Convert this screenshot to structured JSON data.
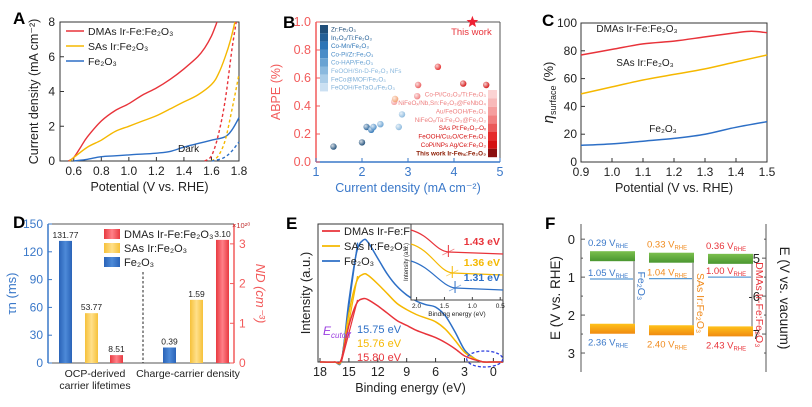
{
  "colors": {
    "red": "#e8333a",
    "yellow": "#f5b800",
    "blue": "#2d6fc6",
    "orange": "#f08a1c",
    "green": "#5aa83a",
    "violet": "#9b3fe0",
    "axis_red": "#f25b5b",
    "axis_blue": "#3a78c9"
  },
  "chart_data": [
    {
      "panel": "A",
      "type": "line",
      "xlabel": "Potential (V vs. RHE)",
      "ylabel": "Current density (mA cm⁻²)",
      "xlim": [
        0.5,
        1.8
      ],
      "ylim": [
        0,
        8
      ],
      "xticks": [
        "0.6",
        "0.8",
        "1.0",
        "1.2",
        "1.4",
        "1.6",
        "1.8"
      ],
      "yticks": [
        "0",
        "2",
        "4",
        "6",
        "8"
      ],
      "annotation": "Dark",
      "legend": [
        "DMAs Ir-Fe:Fe₂O₃",
        "SAs Ir:Fe₂O₃",
        "Fe₂O₃"
      ],
      "series": [
        {
          "name": "DMAs Ir-Fe:Fe2O3",
          "color": "red",
          "style": "solid",
          "x": [
            0.56,
            0.6,
            0.65,
            0.7,
            0.8,
            0.9,
            1.0,
            1.1,
            1.2,
            1.3,
            1.4,
            1.5,
            1.55,
            1.6,
            1.64
          ],
          "y": [
            0,
            0.2,
            0.8,
            1.4,
            2.3,
            2.9,
            3.3,
            3.8,
            4.2,
            4.7,
            5.3,
            6.0,
            6.5,
            7.2,
            8.0
          ]
        },
        {
          "name": "SAs Ir:Fe2O3",
          "color": "yellow",
          "style": "solid",
          "x": [
            0.57,
            0.6,
            0.7,
            0.8,
            0.9,
            1.0,
            1.1,
            1.2,
            1.3,
            1.4,
            1.5,
            1.6,
            1.65,
            1.7,
            1.74,
            1.77
          ],
          "y": [
            0,
            0.2,
            0.8,
            1.2,
            1.7,
            2.0,
            2.3,
            2.6,
            3.0,
            3.4,
            3.8,
            4.4,
            5.0,
            6.0,
            7.0,
            8.0
          ]
        },
        {
          "name": "Fe2O3",
          "color": "blue",
          "style": "solid",
          "x": [
            0.6,
            0.7,
            0.8,
            0.9,
            1.0,
            1.1,
            1.2,
            1.3,
            1.4,
            1.5,
            1.6,
            1.7,
            1.75,
            1.8
          ],
          "y": [
            0,
            0.1,
            0.25,
            0.3,
            0.35,
            0.4,
            0.45,
            0.55,
            0.8,
            1.0,
            1.2,
            1.4,
            1.8,
            2.5
          ]
        },
        {
          "name": "DMAs dark",
          "color": "red",
          "style": "dashed",
          "x": [
            1.55,
            1.6,
            1.65,
            1.7,
            1.75,
            1.78
          ],
          "y": [
            0,
            0.3,
            1.5,
            3.5,
            6.5,
            8.0
          ]
        },
        {
          "name": "SAs dark",
          "color": "yellow",
          "style": "dashed",
          "x": [
            1.6,
            1.65,
            1.7,
            1.75,
            1.8
          ],
          "y": [
            0,
            0.3,
            1.2,
            3.0,
            5.0
          ]
        },
        {
          "name": "Fe2O3 dark",
          "color": "blue",
          "style": "dashed",
          "x": [
            1.6,
            1.68,
            1.74,
            1.8
          ],
          "y": [
            0,
            0.15,
            0.5,
            1.1
          ]
        }
      ]
    },
    {
      "panel": "B",
      "type": "scatter",
      "xlabel": "Current density (mA cm⁻²)",
      "ylabel": "ABPE (%)",
      "xlim": [
        1,
        5
      ],
      "ylim": [
        0,
        1.0
      ],
      "xticks": [
        "1",
        "2",
        "3",
        "4",
        "5"
      ],
      "yticks": [
        "0.0",
        "0.2",
        "0.4",
        "0.6",
        "0.8",
        "1.0"
      ],
      "this_work": {
        "label": "This work",
        "x": 4.4,
        "y": 1.0
      },
      "legend_left": [
        {
          "label": "Zr:Fe₂O₃",
          "color": "#1f4e79"
        },
        {
          "label": "In₂O₃/Ti:Fe₂O₃",
          "color": "#245f96"
        },
        {
          "label": "Co-Mn/Fe₂O₃",
          "color": "#2e75b6"
        },
        {
          "label": "Co-Pi/Zr:Fe₂O₃",
          "color": "#4a8cc7"
        },
        {
          "label": "Co-HAP/Fe₂O₃",
          "color": "#6aa3d3"
        },
        {
          "label": "FeOOH/Sn-D-Fe₂O₃ NFs",
          "color": "#8bb9de"
        },
        {
          "label": "FeCo@MOF/Fe₂O₃",
          "color": "#abcde8"
        },
        {
          "label": "FeOOH/FeTaO₄/Fe₂O₃",
          "color": "#cbe0f2"
        }
      ],
      "legend_right": [
        {
          "label": "Co-Pi/Co₂O₃/Ti:Fe₂O₃",
          "color": "#fbd3d3"
        },
        {
          "label": "NiFeOₓ/Nb,Sn:Fe₂O₃@FeNbO₄",
          "color": "#f8b9b9"
        },
        {
          "label": "Au/FeOOH/Fe₂O₃",
          "color": "#f59e9e"
        },
        {
          "label": "NiFeOₓ/Ta:Fe₂O₃@Fe₂O₃",
          "color": "#f18080"
        },
        {
          "label": "SAs Pt:Fe₂O₃-Oᵥ",
          "color": "#ea5a5a"
        },
        {
          "label": "FeOOH/Cu₂O/Ce:Fe₂O₃",
          "color": "#e52a2a"
        },
        {
          "label": "CoPi/NPs Ag/Ce:Fe₂O₃",
          "color": "#d41212"
        },
        {
          "label": "This work Ir-Feₕₓ:Fe₂O₃",
          "color": "#8b0f0f"
        }
      ],
      "points_blue": [
        [
          1.38,
          0.11
        ],
        [
          2.0,
          0.14
        ],
        [
          2.1,
          0.25
        ],
        [
          2.2,
          0.23
        ],
        [
          2.25,
          0.25
        ],
        [
          2.4,
          0.27
        ],
        [
          2.8,
          0.25
        ],
        [
          2.87,
          0.34
        ]
      ],
      "points_red": [
        [
          2.7,
          0.43
        ],
        [
          2.72,
          0.45
        ],
        [
          3.2,
          0.47
        ],
        [
          3.22,
          0.55
        ],
        [
          3.65,
          0.68
        ],
        [
          4.2,
          0.56
        ],
        [
          4.7,
          0.55
        ]
      ]
    },
    {
      "panel": "C",
      "type": "line",
      "xlabel": "Potential (V vs. RHE)",
      "ylabel": "ηsurface (%)",
      "xlim": [
        0.9,
        1.5
      ],
      "ylim": [
        0,
        100
      ],
      "xticks": [
        "0.9",
        "1.0",
        "1.1",
        "1.2",
        "1.3",
        "1.4",
        "1.5"
      ],
      "yticks": [
        "0",
        "20",
        "40",
        "60",
        "80",
        "100"
      ],
      "series": [
        {
          "name": "DMAs Ir-Fe:Fe₂O₃",
          "color": "red",
          "x": [
            0.9,
            1.0,
            1.1,
            1.2,
            1.3,
            1.4,
            1.45,
            1.5
          ],
          "y": [
            77,
            81,
            85,
            87,
            90,
            93,
            94,
            93
          ]
        },
        {
          "name": "SAs Ir:Fe₂O₃",
          "color": "yellow",
          "x": [
            0.9,
            1.0,
            1.1,
            1.2,
            1.3,
            1.4,
            1.5
          ],
          "y": [
            49,
            54,
            59,
            63,
            67,
            72,
            77
          ]
        },
        {
          "name": "Fe₂O₃",
          "color": "blue",
          "x": [
            0.9,
            1.0,
            1.1,
            1.2,
            1.3,
            1.4,
            1.5
          ],
          "y": [
            12,
            13,
            15,
            17,
            20,
            25,
            29
          ]
        }
      ]
    },
    {
      "panel": "D",
      "type": "bar",
      "ylabel_left": "τn (ms)",
      "ylabel_right": "ND (cm⁻³)",
      "right_multiplier": "×10²⁰",
      "ylim_left": [
        0,
        150
      ],
      "ylim_right": [
        0,
        3.5
      ],
      "yticks_left": [
        "0",
        "30",
        "60",
        "90",
        "120",
        "150"
      ],
      "yticks_right": [
        "0",
        "1",
        "2",
        "3"
      ],
      "categories": [
        "OCP-derived\ncarrier lifetimes",
        "Charge-carrier density"
      ],
      "category_lines": [
        [
          "OCP-derived",
          "carrier lifetimes"
        ],
        [
          "Charge-carrier density"
        ]
      ],
      "legend": [
        "DMAs Ir-Fe:Fe₂O₃",
        "SAs Ir:Fe₂O₃",
        "Fe₂O₃"
      ],
      "series": [
        {
          "name": "Fe2O3",
          "color": "blue",
          "values": [
            131.77,
            0.39
          ],
          "labels": [
            "131.77",
            "0.39"
          ]
        },
        {
          "name": "SAs Ir:Fe2O3",
          "color": "yellow",
          "values": [
            53.77,
            1.59
          ],
          "labels": [
            "53.77",
            "1.59"
          ]
        },
        {
          "name": "DMAs Ir-Fe:Fe2O3",
          "color": "red",
          "values": [
            8.51,
            3.1
          ],
          "labels": [
            "8.51",
            "3.10"
          ]
        }
      ]
    },
    {
      "panel": "E",
      "type": "line",
      "xlabel": "Binding energy (eV)",
      "ylabel": "Intensity (a.u.)",
      "xlim": [
        18,
        -1
      ],
      "xticks": [
        "18",
        "15",
        "12",
        "9",
        "6",
        "3",
        "0"
      ],
      "cutoff_label": "E",
      "cutoff_sub": "cutoff",
      "cutoffs": [
        {
          "label": "15.75 eV",
          "color": "blue"
        },
        {
          "label": "15.76 eV",
          "color": "yellow"
        },
        {
          "label": "15.80 eV",
          "color": "red"
        }
      ],
      "legend": [
        "DMAs Ir-Fe:Fe₂O₃",
        "SAs Ir:Fe₂O₃",
        "Fe₂O₃"
      ],
      "inset": {
        "xlabel": "Binding energy (eV)",
        "ylabel": "Intensity (a.u.)",
        "xticks": [
          "2.0",
          "1.5",
          "1.0",
          "0.5"
        ],
        "values": [
          {
            "label": "1.43 eV",
            "color": "red"
          },
          {
            "label": "1.36 eV",
            "color": "yellow"
          },
          {
            "label": "1.31 eV",
            "color": "blue"
          }
        ]
      },
      "series": [
        {
          "name": "Fe2O3",
          "color": "blue",
          "x": [
            18,
            16.5,
            15.75,
            15,
            14.2,
            13.5,
            13,
            12,
            11,
            10,
            9,
            8,
            7,
            6,
            5,
            4,
            3,
            2,
            1.5,
            1,
            0,
            -1
          ],
          "y": [
            0,
            0,
            0.02,
            0.5,
            0.9,
            1.0,
            0.98,
            0.85,
            0.72,
            0.62,
            0.55,
            0.5,
            0.47,
            0.45,
            0.38,
            0.25,
            0.1,
            0.03,
            0.01,
            0,
            0,
            0
          ]
        },
        {
          "name": "SAs",
          "color": "yellow",
          "x": [
            18,
            16.5,
            15.76,
            15,
            14.2,
            13.5,
            13,
            12,
            11,
            10,
            9,
            8,
            7,
            6,
            5,
            4,
            3,
            2,
            1.5,
            1,
            0,
            -1
          ],
          "y": [
            0,
            0,
            0.02,
            0.4,
            0.66,
            0.72,
            0.71,
            0.64,
            0.56,
            0.48,
            0.43,
            0.39,
            0.36,
            0.33,
            0.27,
            0.18,
            0.08,
            0.03,
            0.01,
            0,
            0,
            0
          ]
        },
        {
          "name": "DMAs",
          "color": "red",
          "x": [
            18,
            16.5,
            15.8,
            15,
            14.2,
            13.5,
            13,
            12,
            11,
            10,
            9,
            8,
            7,
            6,
            5,
            4,
            3,
            2,
            1.5,
            1,
            0,
            -1
          ],
          "y": [
            0,
            0,
            0.02,
            0.3,
            0.48,
            0.52,
            0.51,
            0.46,
            0.4,
            0.34,
            0.3,
            0.26,
            0.23,
            0.2,
            0.16,
            0.11,
            0.05,
            0.02,
            0.01,
            0,
            0,
            0
          ]
        }
      ]
    },
    {
      "panel": "F",
      "type": "diagram",
      "ylabel_left": "E (V vs. RHE)",
      "ylabel_right": "E (V vs. vacuum)",
      "ylim_left": [
        -0.4,
        3.5
      ],
      "yticks_left": [
        "0",
        "1",
        "2",
        "3"
      ],
      "yticks_right": [
        "-5",
        "-6",
        "-7"
      ],
      "materials": [
        {
          "name": "Fe₂O₃",
          "color": "blue",
          "cb": "0.29",
          "fermi": "1.05",
          "vb": "2.36",
          "cb_v": 0.29,
          "fermi_v": 1.05,
          "vb_v": 2.36
        },
        {
          "name": "SAs Ir:Fe₂O₃",
          "color": "orange",
          "cb": "0.33",
          "fermi": "1.04",
          "vb": "2.40",
          "cb_v": 0.33,
          "fermi_v": 1.04,
          "vb_v": 2.4
        },
        {
          "name": "DMAs Ir-Fe:Fe₂O₃",
          "color": "red",
          "cb": "0.36",
          "fermi": "1.00",
          "vb": "2.43",
          "cb_v": 0.36,
          "fermi_v": 1.0,
          "vb_v": 2.43
        }
      ],
      "unit": "V",
      "unit_sub": "RHE"
    }
  ]
}
